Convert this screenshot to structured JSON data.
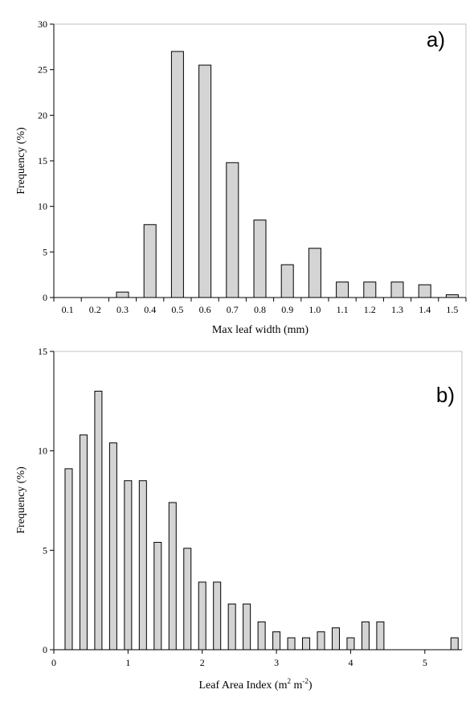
{
  "chart_data": [
    {
      "type": "bar",
      "panel_label": "a)",
      "title": "",
      "xlabel": "Max leaf width (mm)",
      "ylabel": "Frequency (%)",
      "categories": [
        "0.1",
        "0.2",
        "0.3",
        "0.4",
        "0.5",
        "0.6",
        "0.7",
        "0.8",
        "0.9",
        "1.0",
        "1.1",
        "1.2",
        "1.3",
        "1.4",
        "1.5"
      ],
      "values": [
        0,
        0,
        0.6,
        8.0,
        27.0,
        25.5,
        14.8,
        8.5,
        3.6,
        5.4,
        1.7,
        1.7,
        1.7,
        1.4,
        0.3
      ],
      "ylim": [
        0,
        30
      ],
      "yticks": [
        0,
        5,
        10,
        15,
        20,
        25,
        30
      ],
      "grid": false,
      "bar_fill": "#d4d4d4",
      "bar_stroke": "#000000"
    },
    {
      "type": "bar",
      "panel_label": "b)",
      "title": "",
      "xlabel_main": "Leaf Area Index (m",
      "xlabel_sup1": "2",
      "xlabel_mid": " m",
      "xlabel_sup2": "-2",
      "xlabel_end": ")",
      "ylabel": "Frequency (%)",
      "x": [
        0.2,
        0.4,
        0.6,
        0.8,
        1.0,
        1.2,
        1.4,
        1.6,
        1.8,
        2.0,
        2.2,
        2.4,
        2.6,
        2.8,
        3.0,
        3.2,
        3.4,
        3.6,
        3.8,
        4.0,
        4.2,
        4.4,
        5.4
      ],
      "values": [
        9.1,
        10.8,
        13.0,
        10.4,
        8.5,
        8.5,
        5.4,
        7.4,
        5.1,
        3.4,
        3.4,
        2.3,
        2.3,
        1.4,
        0.9,
        0.6,
        0.6,
        0.9,
        1.1,
        0.6,
        1.4,
        1.4,
        0.6
      ],
      "xlim": [
        0,
        5.5
      ],
      "xticks": [
        0,
        1,
        2,
        3,
        4,
        5
      ],
      "ylim": [
        0,
        15
      ],
      "yticks": [
        0,
        5,
        10,
        15
      ],
      "grid": false,
      "bar_fill": "#d4d4d4",
      "bar_stroke": "#000000"
    }
  ]
}
